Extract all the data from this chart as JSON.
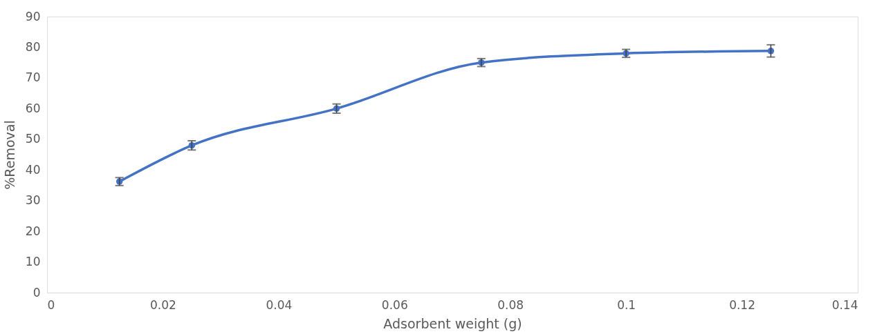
{
  "chart_data": {
    "type": "line",
    "xlabel": "Adsorbent weight (g)",
    "ylabel": "%Removal",
    "x": [
      0.0125,
      0.025,
      0.05,
      0.075,
      0.1,
      0.125
    ],
    "series": [
      {
        "color": "#4472c4",
        "values": [
          36.2,
          48,
          60,
          75,
          78,
          78.8
        ],
        "errors": [
          1.3,
          1.5,
          1.5,
          1.3,
          1.3,
          2
        ]
      }
    ],
    "xlim": [
      0,
      0.14
    ],
    "xticks": [
      0,
      0.02,
      0.04,
      0.06,
      0.08,
      0.1,
      0.12,
      0.14
    ],
    "ylim": [
      0,
      90
    ],
    "yticks": [
      0,
      10,
      20,
      30,
      40,
      50,
      60,
      70,
      80,
      90
    ],
    "grid": false,
    "marker": "circle",
    "line_style": "solid"
  }
}
